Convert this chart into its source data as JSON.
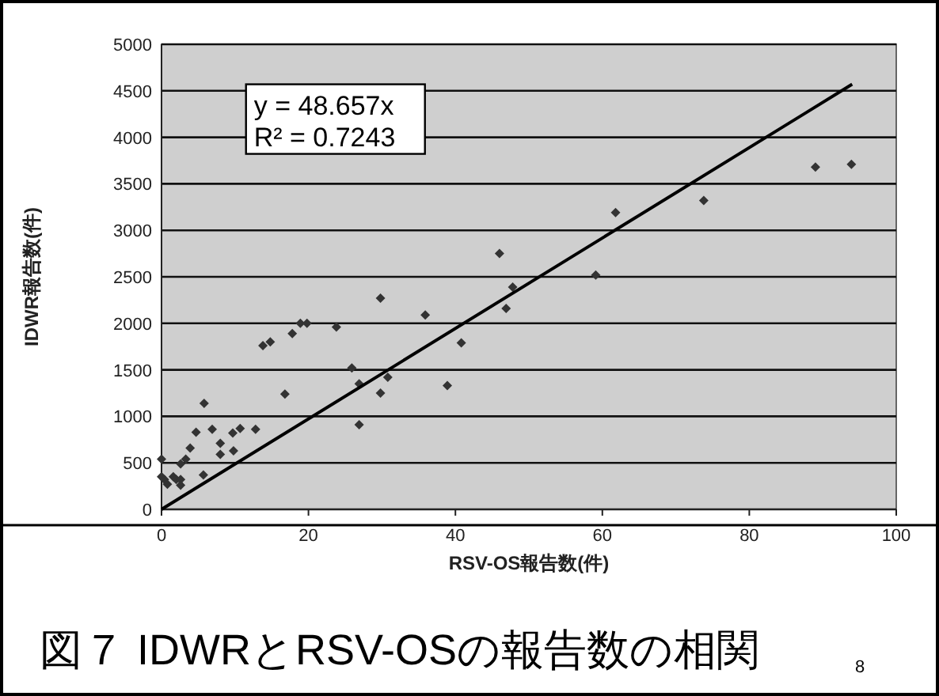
{
  "chart_data": {
    "type": "scatter",
    "title": "図７ IDWRとRSV-OSの報告数の相関",
    "xlabel": "RSV-OS報告数(件)",
    "ylabel": "IDWR報告数(件)",
    "annotations": [
      "y = 48.657x",
      "R² = 0.7243",
      "8"
    ],
    "xlim": [
      0,
      100
    ],
    "ylim": [
      0,
      5000
    ],
    "xticks": [
      0,
      20,
      40,
      60,
      80,
      100
    ],
    "yticks": [
      0,
      500,
      1000,
      1500,
      2000,
      2500,
      3000,
      3500,
      4000,
      4500,
      5000
    ],
    "grid": "y",
    "series": [
      {
        "color": "#333333",
        "marker": "diamond",
        "x": [
          0,
          0,
          0.4,
          0.8,
          1.6,
          2,
          2.6,
          2.6,
          3.3,
          3.9,
          2.6,
          5.7,
          5.8,
          4.7,
          6.9,
          8,
          8,
          9.7,
          9.8,
          10.7,
          12.8,
          13.8,
          14.8,
          16.8,
          17.8,
          18.9,
          19.8,
          23.8,
          25.9,
          26.9,
          26.9,
          29.8,
          29.8,
          30.8,
          35.9,
          38.9,
          40.8,
          46,
          46.9,
          47.8,
          59.1,
          61.8,
          73.8,
          89,
          93.9
        ],
        "values": [
          540,
          350,
          320,
          270,
          350,
          320,
          320,
          490,
          540,
          660,
          260,
          370,
          1140,
          830,
          860,
          710,
          590,
          820,
          630,
          870,
          860,
          1760,
          1800,
          1240,
          1890,
          2000,
          2000,
          1960,
          1520,
          1350,
          910,
          2270,
          1250,
          1420,
          2090,
          1330,
          1790,
          2750,
          2160,
          2390,
          2520,
          3190,
          3320,
          3680,
          3710
        ]
      },
      {
        "type": "line",
        "color": "#000000",
        "marker": "none",
        "x": [
          0,
          94
        ],
        "values": [
          0,
          4570
        ]
      }
    ]
  }
}
